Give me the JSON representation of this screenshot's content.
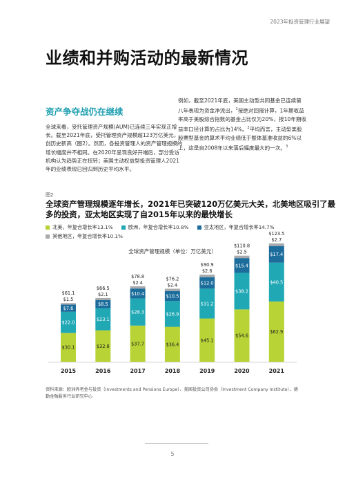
{
  "header": {
    "report_title": "2023年投资管理行业展望"
  },
  "page_title": "业绩和并购活动的最新情况",
  "section_heading": "资产争夺战仍在继续",
  "body_left": "全球来看，受托管理资产规模(AUM)已连续三年实现正增长。截至2021年底，受托管理资产规模超123万亿美元，创历史新高（图2）。然而，各投资管理人的资产管理规模的增长幅度并不相同。在2020年呈现良好开端后，部分受访机构认为趋势正在扭转；美国主动权益型投资管理人2021年的业绩表现已回归到历史平均水平。",
  "body_right": {
    "part1": "例如，截至2021年底，美国主动型共同基金已连续第八年表现为资金净流出，",
    "ref1": "1",
    "part2": "按绝对回报计算，1年期收益率高于美股综合指数的基金占比仅为20%，按10年期收益率口径计算的占比为14%。",
    "ref2": "2",
    "part3": "平均而言，主动型美股股票型基金的算术平均业绩低于整体基准收益的6%以上，这是自2008年以来落后幅度最大的一次。",
    "ref3": "3"
  },
  "figure": {
    "label": "图2",
    "title": "全球资产管理规模逐年增长，2021年已突破120万亿美元大关，北美地区吸引了最多的投资，亚太地区实现了自2015年以来的最快增长",
    "legend": [
      {
        "label": "北美，年复合增长率13.1%",
        "color": "#b8d335"
      },
      {
        "label": "欧洲，年复合增长率10.8%",
        "color": "#20a8b5"
      },
      {
        "label": "亚太地区，年复合增长率14.7%",
        "color": "#1c6d9c"
      },
      {
        "label": "其他地区，年复合增长率10.1%",
        "color": "#a7a9ac"
      }
    ],
    "chart_title": "全球资产管理规模（单位：万亿美元）"
  },
  "chart_data": {
    "type": "bar",
    "stacked": true,
    "categories": [
      "2015",
      "2016",
      "2017",
      "2018",
      "2019",
      "2020",
      "2021"
    ],
    "series": [
      {
        "name": "北美",
        "color": "#b8d335",
        "values": [
          30.1,
          32.8,
          37.7,
          36.4,
          45.1,
          54.6,
          62.9
        ]
      },
      {
        "name": "欧洲",
        "color": "#20a8b5",
        "values": [
          22.0,
          23.1,
          28.3,
          26.9,
          31.2,
          38.2,
          40.5
        ]
      },
      {
        "name": "亚太地区",
        "color": "#1c6d9c",
        "values": [
          7.6,
          8.5,
          10.4,
          10.5,
          12.0,
          15.4,
          17.4
        ]
      },
      {
        "name": "其他地区",
        "color": "#a7a9ac",
        "values": [
          1.5,
          2.1,
          2.4,
          2.4,
          2.6,
          2.5,
          2.7
        ]
      }
    ],
    "totals": [
      61.1,
      66.5,
      78.8,
      76.2,
      90.9,
      110.8,
      123.5
    ],
    "value_prefix": "$",
    "legend_position": "top-left",
    "grid": false
  },
  "source": "资料来源：欧洲养老金与投资（Investments and Pensions Europe）、美国投资公司协会（Investment Company Institute）、德勤金融服务行业研究中心",
  "footer": {
    "page_number": "5"
  }
}
